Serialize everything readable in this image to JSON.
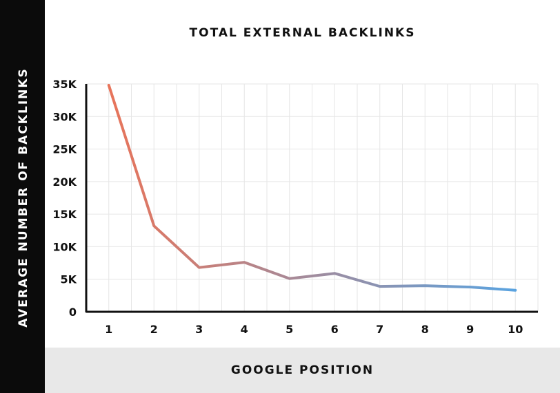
{
  "chart_data": {
    "type": "line",
    "title": "TOTAL EXTERNAL BACKLINKS",
    "xlabel": "GOOGLE POSITION",
    "ylabel": "AVERAGE NUMBER OF BACKLINKS",
    "x": [
      1,
      2,
      3,
      4,
      5,
      6,
      7,
      8,
      9,
      10
    ],
    "x_tick_labels": [
      "1",
      "2",
      "3",
      "4",
      "5",
      "6",
      "7",
      "8",
      "9",
      "10"
    ],
    "series": [
      {
        "values": [
          34800,
          13200,
          6800,
          7600,
          5100,
          5900,
          3900,
          4000,
          3800,
          3300
        ]
      }
    ],
    "y_ticks": [
      0,
      5000,
      10000,
      15000,
      20000,
      25000,
      30000,
      35000
    ],
    "y_tick_labels": [
      "0",
      "5K",
      "10K",
      "15K",
      "20K",
      "25K",
      "30K",
      "35K"
    ],
    "ylim": [
      0,
      35000
    ],
    "xlim": [
      0.5,
      10.5
    ],
    "grid": true,
    "legend": "none",
    "colors": {
      "line_start": "#e8745a",
      "line_end": "#5aa3e0",
      "grid": "#e6e6e6",
      "axis": "#111111",
      "left_band": "#0b0b0b",
      "bottom_band": "#e8e8e8"
    }
  }
}
